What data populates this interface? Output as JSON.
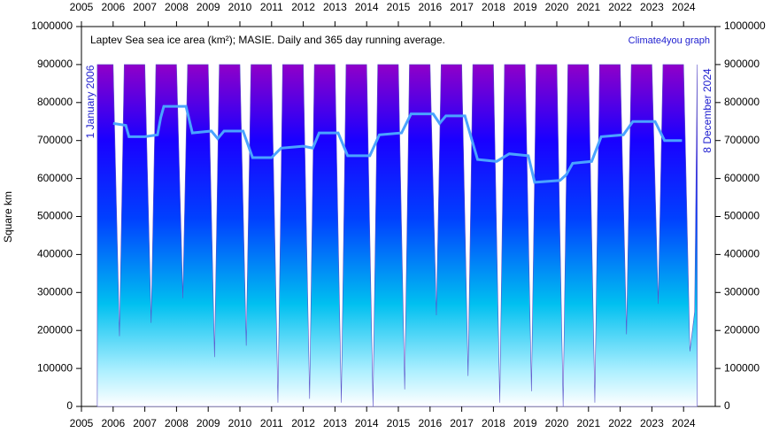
{
  "chart_data": {
    "type": "area",
    "title": "Laptev Sea sea ice area (km²); MASIE. Daily and 365 day running average.",
    "source": "Climate4you graph",
    "start_label": "1 January 2006",
    "end_label": "8 December 2024",
    "ylabel": "Square km",
    "xlim": [
      2005.5,
      2025.5
    ],
    "xticks": [
      {
        "value": 2005.5,
        "label": "2005"
      },
      {
        "value": 2006.5,
        "label": "2006"
      },
      {
        "value": 2007.5,
        "label": "2007"
      },
      {
        "value": 2008.5,
        "label": "2008"
      },
      {
        "value": 2009.5,
        "label": "2009"
      },
      {
        "value": 2010.5,
        "label": "2010"
      },
      {
        "value": 2011.5,
        "label": "2011"
      },
      {
        "value": 2012.5,
        "label": "2012"
      },
      {
        "value": 2013.5,
        "label": "2013"
      },
      {
        "value": 2014.5,
        "label": "2014"
      },
      {
        "value": 2015.5,
        "label": "2015"
      },
      {
        "value": 2016.5,
        "label": "2016"
      },
      {
        "value": 2017.5,
        "label": "2017"
      },
      {
        "value": 2018.5,
        "label": "2018"
      },
      {
        "value": 2019.5,
        "label": "2019"
      },
      {
        "value": 2020.5,
        "label": "2020"
      },
      {
        "value": 2021.5,
        "label": "2021"
      },
      {
        "value": 2022.5,
        "label": "2022"
      },
      {
        "value": 2023.5,
        "label": "2023"
      },
      {
        "value": 2024.5,
        "label": "2024"
      }
    ],
    "ylim": [
      0,
      1000000
    ],
    "yticks": [
      0,
      100000,
      200000,
      300000,
      400000,
      500000,
      600000,
      700000,
      800000,
      900000,
      1000000
    ],
    "series": [
      {
        "color": "#0000ff",
        "x": [
          2006.0,
          2006.5,
          2006.7,
          2006.85,
          2007.5,
          2007.7,
          2007.85,
          2008.5,
          2008.7,
          2008.85,
          2009.5,
          2009.7,
          2009.85,
          2010.5,
          2010.7,
          2010.85,
          2011.5,
          2011.7,
          2011.85,
          2012.5,
          2012.7,
          2012.85,
          2013.5,
          2013.7,
          2013.85,
          2014.5,
          2014.7,
          2014.85,
          2015.5,
          2015.7,
          2015.85,
          2016.5,
          2016.7,
          2016.85,
          2017.5,
          2017.7,
          2017.85,
          2018.5,
          2018.7,
          2018.85,
          2019.5,
          2019.7,
          2019.85,
          2020.5,
          2020.7,
          2020.85,
          2021.5,
          2021.7,
          2021.85,
          2022.5,
          2022.7,
          2022.85,
          2023.5,
          2023.7,
          2023.85,
          2024.5,
          2024.7,
          2024.85,
          2024.93
        ],
        "values": [
          900000,
          900000,
          185000,
          900000,
          900000,
          220000,
          900000,
          900000,
          285000,
          900000,
          900000,
          130000,
          900000,
          900000,
          160000,
          900000,
          900000,
          10000,
          900000,
          900000,
          20000,
          900000,
          900000,
          10000,
          900000,
          900000,
          0,
          900000,
          900000,
          45000,
          900000,
          900000,
          240000,
          900000,
          900000,
          80000,
          900000,
          900000,
          10000,
          900000,
          900000,
          40000,
          900000,
          900000,
          0,
          900000,
          900000,
          10000,
          900000,
          900000,
          190000,
          900000,
          900000,
          270000,
          900000,
          900000,
          145000,
          250000,
          900000
        ]
      },
      {
        "color": "#4aa3ff",
        "x": [
          2006.5,
          2006.9,
          2007.0,
          2007.5,
          2007.9,
          2008.0,
          2008.1,
          2008.8,
          2009.0,
          2009.6,
          2009.8,
          2010.0,
          2010.6,
          2010.9,
          2011.5,
          2011.8,
          2012.5,
          2012.8,
          2013.0,
          2013.6,
          2013.9,
          2014.6,
          2014.9,
          2015.6,
          2015.9,
          2016.6,
          2016.8,
          2017.0,
          2017.6,
          2018.0,
          2018.6,
          2019.0,
          2019.6,
          2019.8,
          2020.6,
          2020.8,
          2021.0,
          2021.6,
          2021.9,
          2022.6,
          2022.9,
          2023.6,
          2023.9,
          2024.45
        ],
        "values": [
          745000,
          740000,
          710000,
          710000,
          715000,
          760000,
          790000,
          790000,
          720000,
          725000,
          705000,
          725000,
          725000,
          655000,
          655000,
          680000,
          685000,
          680000,
          720000,
          720000,
          660000,
          660000,
          715000,
          720000,
          770000,
          770000,
          745000,
          765000,
          765000,
          650000,
          645000,
          665000,
          660000,
          590000,
          595000,
          610000,
          640000,
          645000,
          710000,
          715000,
          750000,
          750000,
          700000,
          700000
        ]
      }
    ]
  }
}
